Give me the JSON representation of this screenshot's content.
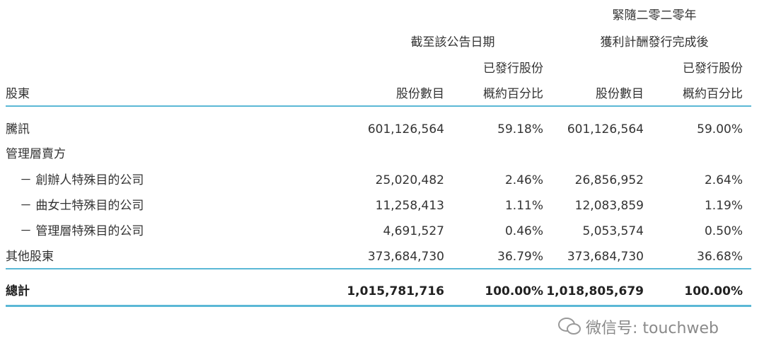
{
  "table": {
    "group_headers": [
      {
        "lines": [
          "截至該公告日期"
        ]
      },
      {
        "lines": [
          "緊隨二零二零年",
          "獲利計酬發行完成後"
        ]
      }
    ],
    "columns": [
      {
        "lines": [
          "股東"
        ]
      },
      {
        "lines": [
          "股份數目"
        ]
      },
      {
        "lines": [
          "已發行股份",
          "概約百分比"
        ]
      },
      {
        "lines": [
          "股份數目"
        ]
      },
      {
        "lines": [
          "已發行股份",
          "概約百分比"
        ]
      }
    ],
    "rows": [
      {
        "label": "騰訊",
        "cells": [
          "601,126,564",
          "59.18%",
          "601,126,564",
          "59.00%"
        ]
      },
      {
        "label": "管理層賣方"
      },
      {
        "label": "－ 創辦人特殊目的公司",
        "indent": true,
        "cells": [
          "25,020,482",
          "2.46%",
          "26,856,952",
          "2.64%"
        ]
      },
      {
        "label": "－ 曲女士特殊目的公司",
        "indent": true,
        "cells": [
          "11,258,413",
          "1.11%",
          "12,083,859",
          "1.19%"
        ]
      },
      {
        "label": "－ 管理層特殊目的公司",
        "indent": true,
        "cells": [
          "4,691,527",
          "0.46%",
          "5,053,574",
          "0.50%"
        ]
      },
      {
        "label": "其他股東",
        "cells": [
          "373,684,730",
          "36.79%",
          "373,684,730",
          "36.68%"
        ]
      }
    ],
    "total": {
      "label": "總計",
      "cells": [
        "1,015,781,716",
        "100.00%",
        "1,018,805,679",
        "100.00%"
      ]
    }
  },
  "watermark": "微信号: touchweb"
}
